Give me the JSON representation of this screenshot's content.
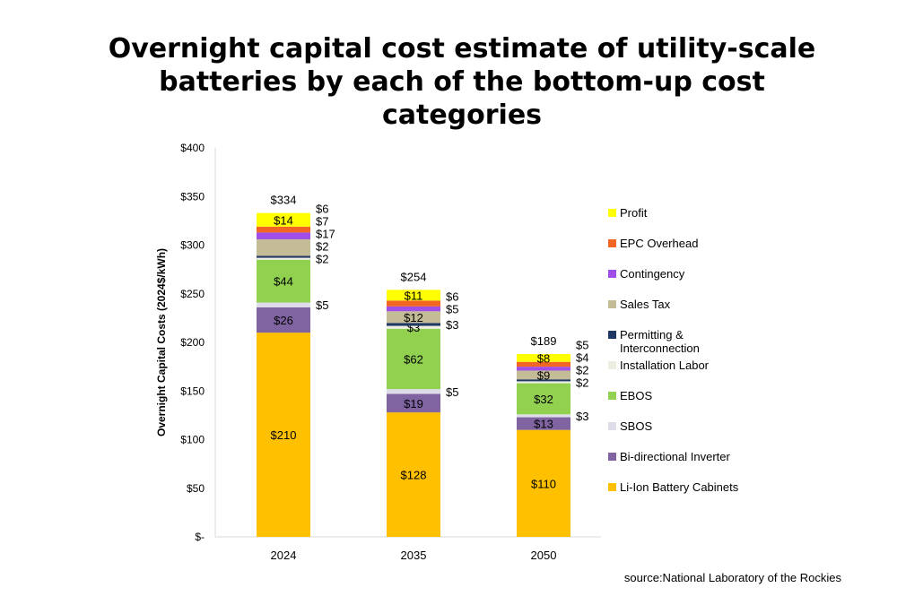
{
  "chart_data": {
    "type": "bar",
    "stacked": true,
    "title": "Overnight capital cost estimate of utility-scale batteries by each of the bottom-up cost categories",
    "ylabel": "Overnight Capital Costs (2024$/kWh)",
    "xlabel": "",
    "ylim": [
      0,
      400
    ],
    "yticks": [
      0,
      50,
      100,
      150,
      200,
      250,
      300,
      350,
      400
    ],
    "ytick_labels": [
      "$-",
      "$50",
      "$100",
      "$150",
      "$200",
      "$250",
      "$300",
      "$350",
      "$400"
    ],
    "categories": [
      "2024",
      "2035",
      "2050"
    ],
    "totals": [
      "$334",
      "$254",
      "$189"
    ],
    "legend_position": "right",
    "series": [
      {
        "name": "Li-Ion Battery Cabinets",
        "color": "#FFC000",
        "values": [
          210,
          128,
          110
        ]
      },
      {
        "name": "Bi-directional Inverter",
        "color": "#8064A2",
        "values": [
          26,
          19,
          13
        ]
      },
      {
        "name": "SBOS",
        "color": "#DDDCE8",
        "values": [
          5,
          5,
          3
        ]
      },
      {
        "name": "EBOS",
        "color": "#92D050",
        "values": [
          44,
          62,
          32
        ]
      },
      {
        "name": "Installation Labor",
        "color": "#EDEDE2",
        "values": [
          2,
          3,
          2
        ]
      },
      {
        "name": "Permitting & Interconnection",
        "color": "#1F3864",
        "values": [
          2,
          3,
          2
        ]
      },
      {
        "name": "Sales Tax",
        "color": "#C4BC96",
        "values": [
          17,
          12,
          9
        ]
      },
      {
        "name": "Contingency",
        "color": "#9F4FE8",
        "values": [
          7,
          5,
          4
        ]
      },
      {
        "name": "EPC Overhead",
        "color": "#F26522",
        "values": [
          6,
          6,
          5
        ]
      },
      {
        "name": "Profit",
        "color": "#FFFF00",
        "values": [
          14,
          11,
          8
        ]
      }
    ]
  },
  "source": "source:National Laboratory of the Rockies"
}
